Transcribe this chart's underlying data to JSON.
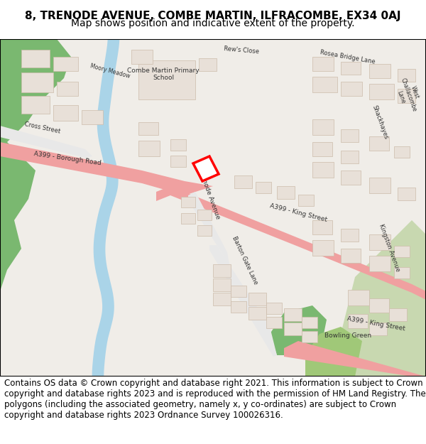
{
  "title_line1": "8, TRENODE AVENUE, COMBE MARTIN, ILFRACOMBE, EX34 0AJ",
  "title_line2": "Map shows position and indicative extent of the property.",
  "copyright_text": "Contains OS data © Crown copyright and database right 2021. This information is subject to Crown copyright and database rights 2023 and is reproduced with the permission of HM Land Registry. The polygons (including the associated geometry, namely x, y co-ordinates) are subject to Crown copyright and database rights 2023 Ordnance Survey 100026316.",
  "title_fontsize": 11,
  "subtitle_fontsize": 10,
  "copyright_fontsize": 8.5,
  "fig_width": 6.0,
  "fig_height": 6.25,
  "map_bg": "#f0ede8",
  "road_pink": "#f5c8c8",
  "road_pink2": "#f0a0a0",
  "water_blue": "#aad4e8",
  "green1": "#c8d8b0",
  "green2": "#7ab870",
  "green3": "#a0c878",
  "building_fill": "#e8e0d8",
  "building_edge": "#ccbbaa",
  "plot_fill": "#ffffff",
  "plot_edge": "#ff0000",
  "plot_linewidth": 2.5,
  "text_color": "#000000",
  "border_color": "#000000",
  "header_bg": "#ffffff",
  "footer_bg": "#ffffff"
}
